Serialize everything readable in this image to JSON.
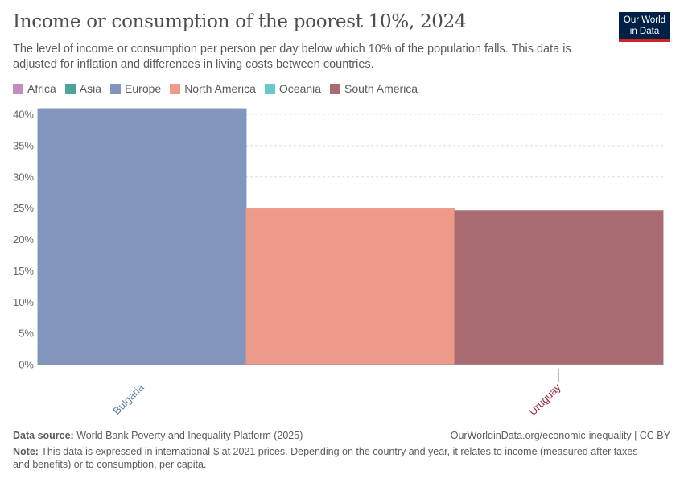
{
  "header": {
    "title": "Income or consumption of the poorest 10%, 2024",
    "subtitle": "The level of income or consumption per person per day below which 10% of the population falls. This data is adjusted for inflation and differences in living costs between countries.",
    "logo_line1": "Our World",
    "logo_line2": "in Data"
  },
  "legend": [
    {
      "label": "Africa",
      "color": "#c48bbf"
    },
    {
      "label": "Asia",
      "color": "#4aa69d"
    },
    {
      "label": "Europe",
      "color": "#8195bd"
    },
    {
      "label": "North America",
      "color": "#ed9a8b"
    },
    {
      "label": "Oceania",
      "color": "#6ac7cf"
    },
    {
      "label": "South America",
      "color": "#a96c73"
    }
  ],
  "chart_data": {
    "type": "bar",
    "categories": [
      "Bulgaria",
      "",
      "Uruguay"
    ],
    "series_regions": [
      "Europe",
      "North America",
      "South America"
    ],
    "values": [
      40.9,
      24.9,
      24.6
    ],
    "colors": [
      "#8195bd",
      "#ed9a8b",
      "#a96c73"
    ],
    "label_colors": [
      "#5a76ae",
      "",
      "#992a3a"
    ],
    "ylim": [
      0,
      40
    ],
    "yticks": [
      "0%",
      "5%",
      "10%",
      "15%",
      "20%",
      "25%",
      "30%",
      "35%",
      "40%"
    ],
    "grid": true
  },
  "footer": {
    "source_label": "Data source:",
    "source": "World Bank Poverty and Inequality Platform (2025)",
    "url": "OurWorldinData.org/economic-inequality | CC BY",
    "note_label": "Note:",
    "note": "This data is expressed in international-$ at 2021 prices. Depending on the country and year, it relates to income (measured after taxes and benefits) or to consumption, per capita."
  }
}
